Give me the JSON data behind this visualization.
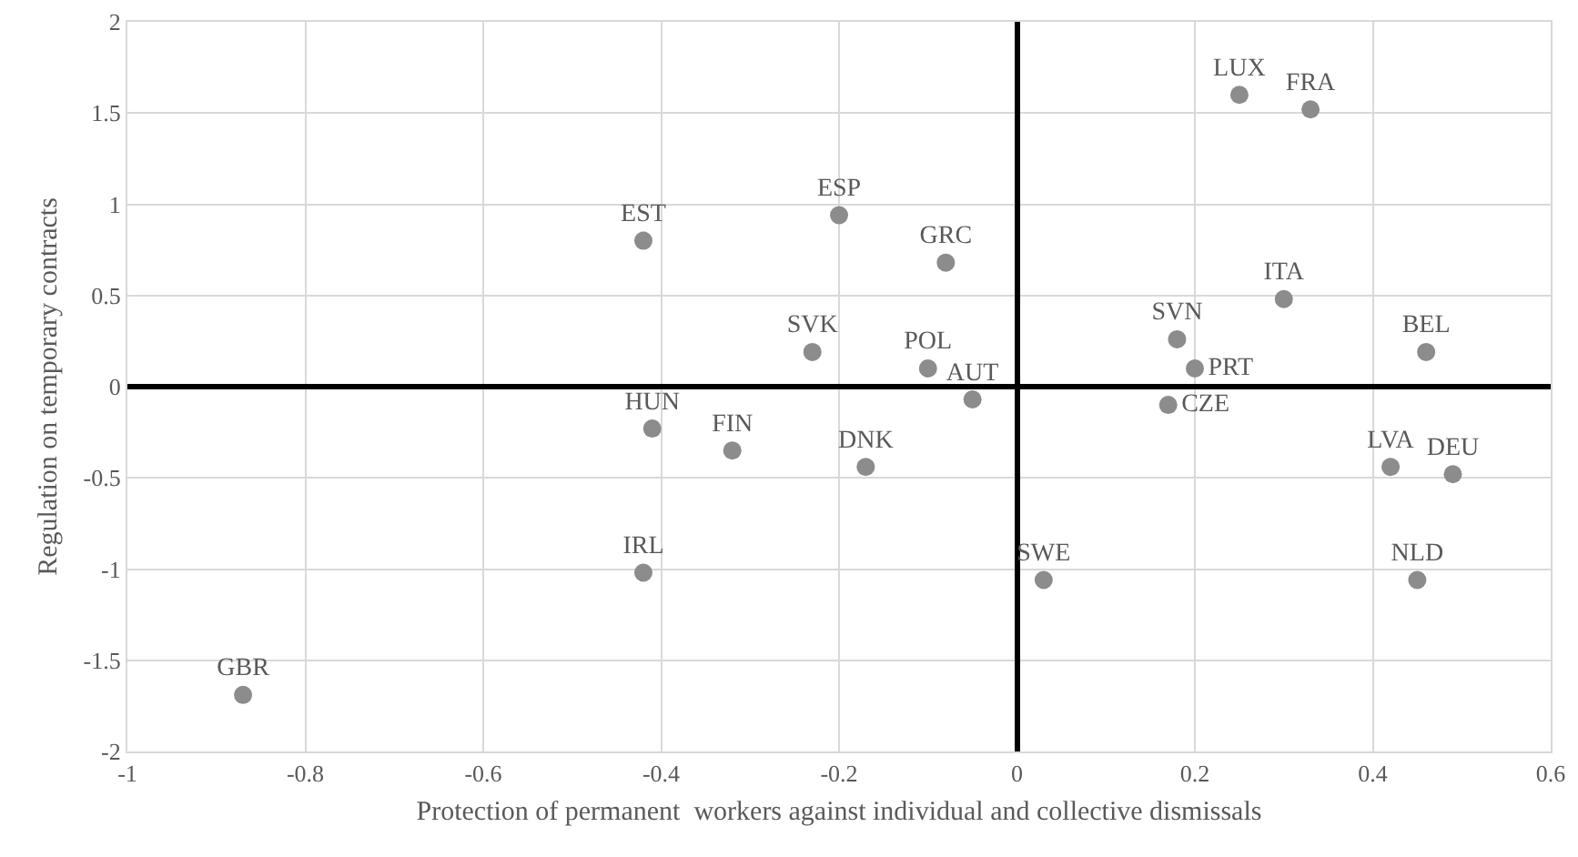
{
  "chart_data": {
    "type": "scatter",
    "xlabel": "Protection of permanent  workers against individual and collective dismissals",
    "ylabel": "Regulation on temporary contracts",
    "xlim": [
      -1,
      0.6
    ],
    "xticks": [
      -1,
      -0.8,
      -0.6,
      -0.4,
      -0.2,
      0,
      0.2,
      0.4,
      0.6
    ],
    "ylim": [
      -2,
      2
    ],
    "yticks": [
      -2,
      -1.5,
      -1,
      -0.5,
      0,
      0.5,
      1,
      1.5,
      2
    ],
    "grid": true,
    "legend": false,
    "marker": "circle",
    "series": [
      {
        "name": "EST",
        "color": "#8c8c8c",
        "x": [
          -0.42
        ],
        "values": [
          0.8
        ]
      },
      {
        "name": "HUN",
        "color": "#8c8c8c",
        "x": [
          -0.41
        ],
        "values": [
          -0.23
        ]
      },
      {
        "name": "FIN",
        "color": "#8c8c8c",
        "x": [
          -0.32
        ],
        "values": [
          -0.35
        ]
      },
      {
        "name": "IRL",
        "color": "#8c8c8c",
        "x": [
          -0.42
        ],
        "values": [
          -1.02
        ]
      },
      {
        "name": "GBR",
        "color": "#8c8c8c",
        "x": [
          -0.87
        ],
        "values": [
          -1.69
        ]
      },
      {
        "name": "ESP",
        "color": "#8c8c8c",
        "x": [
          -0.2
        ],
        "values": [
          0.94
        ]
      },
      {
        "name": "GRC",
        "color": "#8c8c8c",
        "x": [
          -0.08
        ],
        "values": [
          0.68
        ]
      },
      {
        "name": "SVK",
        "color": "#8c8c8c",
        "x": [
          -0.23
        ],
        "values": [
          0.19
        ]
      },
      {
        "name": "POL",
        "color": "#8c8c8c",
        "x": [
          -0.1
        ],
        "values": [
          0.1
        ]
      },
      {
        "name": "AUT",
        "color": "#8c8c8c",
        "x": [
          -0.05
        ],
        "values": [
          -0.07
        ]
      },
      {
        "name": "LUX",
        "color": "#8c8c8c",
        "x": [
          0.25
        ],
        "values": [
          1.6
        ]
      },
      {
        "name": "FRA",
        "color": "#8c8c8c",
        "x": [
          0.33
        ],
        "values": [
          1.52
        ]
      },
      {
        "name": "ITA",
        "color": "#8c8c8c",
        "x": [
          0.3
        ],
        "values": [
          0.48
        ]
      },
      {
        "name": "SVN",
        "color": "#8c8c8c",
        "x": [
          0.18
        ],
        "values": [
          0.26
        ]
      },
      {
        "name": "PRT",
        "color": "#8c8c8c",
        "x": [
          0.2
        ],
        "values": [
          0.1
        ]
      },
      {
        "name": "CZE",
        "color": "#8c8c8c",
        "x": [
          0.17
        ],
        "values": [
          -0.1
        ]
      },
      {
        "name": "BEL",
        "color": "#8c8c8c",
        "x": [
          0.46
        ],
        "values": [
          0.19
        ]
      },
      {
        "name": "DNK",
        "color": "#8c8c8c",
        "x": [
          -0.17
        ],
        "values": [
          -0.44
        ]
      },
      {
        "name": "SWE",
        "color": "#8c8c8c",
        "x": [
          0.03
        ],
        "values": [
          -1.06
        ]
      },
      {
        "name": "LVA",
        "color": "#8c8c8c",
        "x": [
          0.42
        ],
        "values": [
          -0.44
        ]
      },
      {
        "name": "DEU",
        "color": "#8c8c8c",
        "x": [
          0.49
        ],
        "values": [
          -0.48
        ]
      },
      {
        "name": "NLD",
        "color": "#8c8c8c",
        "x": [
          0.45
        ],
        "values": [
          -1.06
        ]
      }
    ]
  }
}
